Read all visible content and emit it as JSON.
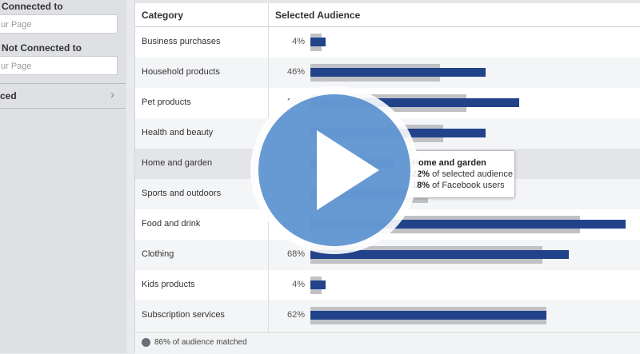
{
  "sidebar": {
    "connected_label": "Connected to",
    "connected_placeholder": "ur Page",
    "not_connected_label": "Not Connected to",
    "not_connected_placeholder": "ur Page",
    "advanced_label": "ced",
    "chevron": "›"
  },
  "table": {
    "col_category": "Category",
    "col_audience": "Selected Audience",
    "footer": "86% of audience matched"
  },
  "colors": {
    "selected": "#22428a",
    "facebook": "#bfc1c5"
  },
  "chart_data": {
    "type": "bar",
    "categories": [
      "Business purchases",
      "Household products",
      "Pet products",
      "Health and beauty",
      "Home and garden",
      "Sports and outdoors",
      "Food and drink",
      "Clothing",
      "Kids products",
      "Subscription services"
    ],
    "series": [
      {
        "name": "selected audience",
        "values": [
          4,
          46,
          55,
          46,
          22,
          38,
          83,
          68,
          4,
          62
        ]
      },
      {
        "name": "Facebook users",
        "values": [
          3,
          34,
          41,
          35,
          18,
          31,
          71,
          61,
          3,
          62
        ]
      }
    ],
    "labels": [
      "4%",
      "46%",
      "55%",
      "46%",
      "22%",
      "38%",
      "83%",
      "68%",
      "4%",
      "62%"
    ],
    "highlighted": 4
  },
  "tooltip": {
    "title": "Home and garden",
    "line1_value": "22%",
    "line1_text": " of selected audience",
    "line2_value": "18%",
    "line2_text": " of Facebook users"
  },
  "video": {
    "icon": "play-icon"
  }
}
